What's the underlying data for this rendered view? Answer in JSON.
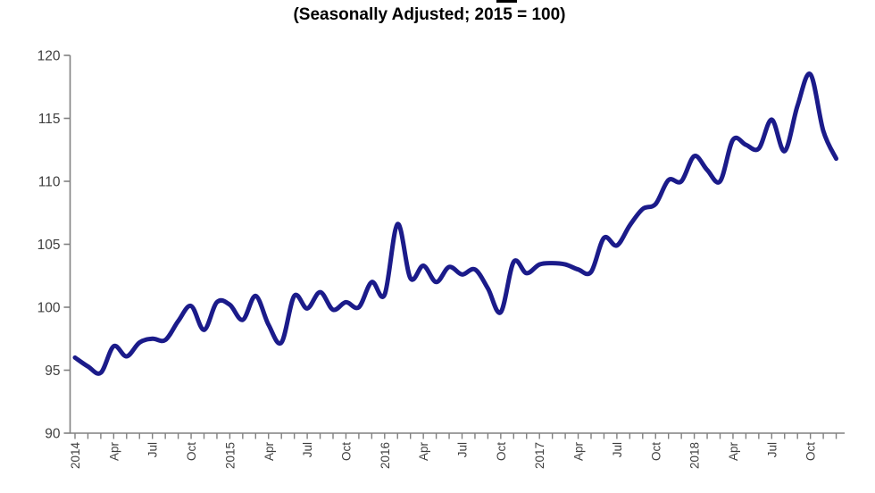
{
  "chart_data": {
    "type": "line",
    "subtitle": "(Seasonally Adjusted; 2015 = 100)",
    "x_unit": "month",
    "x_start": "2014-01",
    "x_end": "2018-12",
    "x_tick_labels": [
      "2014",
      "Apr",
      "Jul",
      "Oct",
      "2015",
      "Apr",
      "Jul",
      "Oct",
      "2016",
      "Apr",
      "Jul",
      "Oct",
      "2017",
      "Apr",
      "Jul",
      "Oct",
      "2018",
      "Apr",
      "Jul",
      "Oct"
    ],
    "x_label_every_n_months": 3,
    "months": [
      "2014-01",
      "2014-02",
      "2014-03",
      "2014-04",
      "2014-05",
      "2014-06",
      "2014-07",
      "2014-08",
      "2014-09",
      "2014-10",
      "2014-11",
      "2014-12",
      "2015-01",
      "2015-02",
      "2015-03",
      "2015-04",
      "2015-05",
      "2015-06",
      "2015-07",
      "2015-08",
      "2015-09",
      "2015-10",
      "2015-11",
      "2015-12",
      "2016-01",
      "2016-02",
      "2016-03",
      "2016-04",
      "2016-05",
      "2016-06",
      "2016-07",
      "2016-08",
      "2016-09",
      "2016-10",
      "2016-11",
      "2016-12",
      "2017-01",
      "2017-02",
      "2017-03",
      "2017-04",
      "2017-05",
      "2017-06",
      "2017-07",
      "2017-08",
      "2017-09",
      "2017-10",
      "2017-11",
      "2017-12",
      "2018-01",
      "2018-02",
      "2018-03",
      "2018-04",
      "2018-05",
      "2018-06",
      "2018-07",
      "2018-08",
      "2018-09",
      "2018-10",
      "2018-11",
      "2018-12"
    ],
    "values": [
      96.0,
      95.3,
      94.8,
      96.9,
      96.1,
      97.2,
      97.5,
      97.4,
      98.9,
      100.1,
      98.2,
      100.4,
      100.2,
      99.0,
      100.9,
      98.6,
      97.2,
      100.9,
      99.9,
      101.2,
      99.8,
      100.4,
      100.0,
      102.0,
      101.0,
      106.6,
      102.3,
      103.3,
      102.0,
      103.2,
      102.6,
      103.0,
      101.5,
      99.6,
      103.6,
      102.7,
      103.4,
      103.5,
      103.4,
      103.0,
      102.8,
      105.5,
      104.9,
      106.5,
      107.8,
      108.2,
      110.1,
      110.0,
      112.0,
      110.9,
      110.0,
      113.3,
      112.9,
      112.6,
      114.9,
      112.4,
      116.0,
      118.5,
      114.0,
      111.8
    ],
    "ylim": [
      90,
      120
    ],
    "y_ticks": [
      90,
      95,
      100,
      105,
      110,
      115,
      120
    ],
    "grid": "off",
    "legend": "none",
    "line_color": "#1b1b8a",
    "axis_color": "#808080",
    "label_color": "#3f3f3f"
  }
}
